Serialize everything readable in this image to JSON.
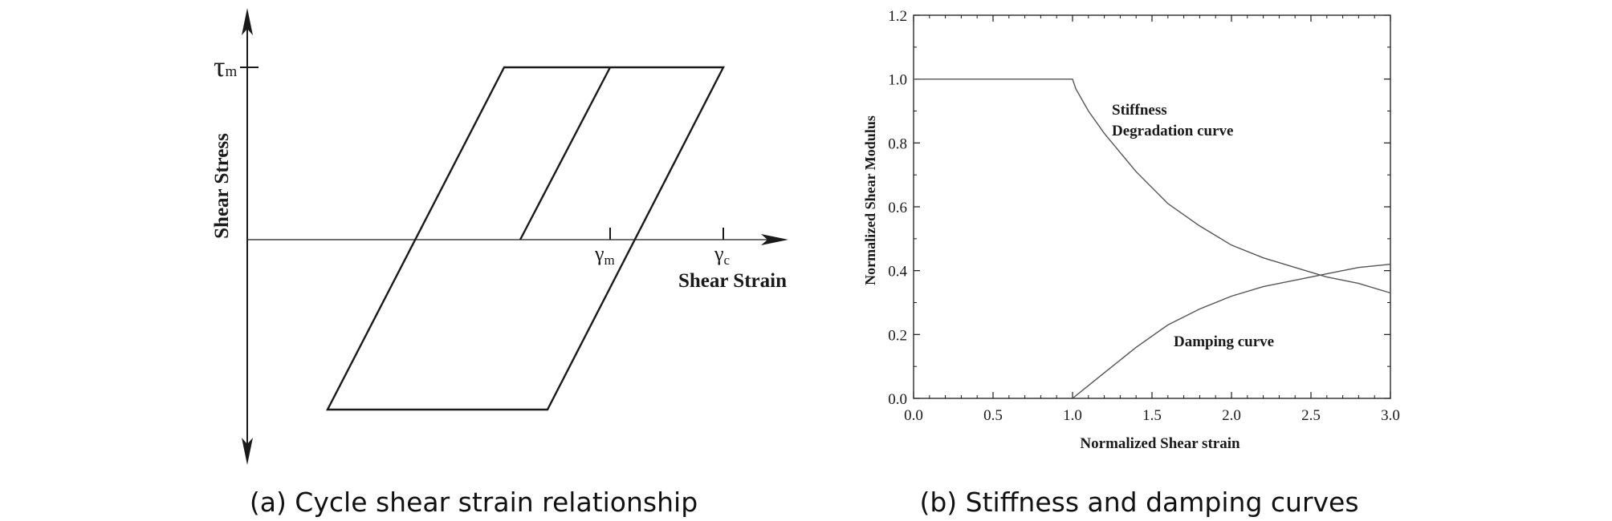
{
  "panel_a": {
    "caption": "(a) Cycle shear strain relationship",
    "y_label": "Shear Stress",
    "x_label": "Shear Strain",
    "tau_symbol": "τ",
    "tau_sub": "m",
    "gamma_symbol": "γ",
    "gamma_m_sub": "m",
    "gamma_c_sub": "c"
  },
  "panel_b": {
    "caption": "(b) Stiffness and damping curves"
  },
  "chart_data": [
    {
      "type": "line",
      "title": "",
      "xlabel": "Shear Strain",
      "ylabel": "Shear Stress",
      "series": [
        {
          "values": [
            [
              -1.5,
              -1.0
            ],
            [
              0.4,
              -1.0
            ],
            [
              2.0,
              1.0
            ],
            [
              0.1,
              1.0
            ],
            [
              -1.5,
              -1.0
            ]
          ]
        },
        {
          "values": [
            [
              0.0,
              0.0
            ],
            [
              0.8,
              1.0
            ]
          ]
        }
      ],
      "annotations": [
        "τm",
        "γm",
        "γc"
      ]
    },
    {
      "type": "line",
      "title": "",
      "xlabel": "Normalized Shear strain",
      "ylabel": "Normalized Shear Modulus",
      "xlim": [
        0.0,
        3.0
      ],
      "ylim": [
        0.0,
        1.2
      ],
      "xticks": [
        "0.0",
        "0.5",
        "1.0",
        "1.5",
        "2.0",
        "2.5",
        "3.0"
      ],
      "yticks": [
        "0.0",
        "0.2",
        "0.4",
        "0.6",
        "0.8",
        "1.0",
        "1.2"
      ],
      "grid": false,
      "series": [
        {
          "name": "Stiffness Degradation curve",
          "label_lines": [
            "Stiffness",
            "Degradation curve"
          ],
          "x": [
            0.0,
            1.0,
            1.02,
            1.1,
            1.2,
            1.4,
            1.6,
            1.8,
            2.0,
            2.2,
            2.4,
            2.6,
            2.8,
            3.0
          ],
          "y": [
            1.0,
            1.0,
            0.97,
            0.9,
            0.83,
            0.71,
            0.61,
            0.54,
            0.48,
            0.44,
            0.41,
            0.38,
            0.36,
            0.33
          ]
        },
        {
          "name": "Damping curve",
          "label_lines": [
            "Damping curve"
          ],
          "x": [
            1.0,
            1.1,
            1.2,
            1.4,
            1.6,
            1.8,
            2.0,
            2.2,
            2.4,
            2.6,
            2.8,
            3.0
          ],
          "y": [
            0.0,
            0.04,
            0.08,
            0.16,
            0.23,
            0.28,
            0.32,
            0.35,
            0.37,
            0.39,
            0.41,
            0.42
          ]
        }
      ]
    }
  ]
}
